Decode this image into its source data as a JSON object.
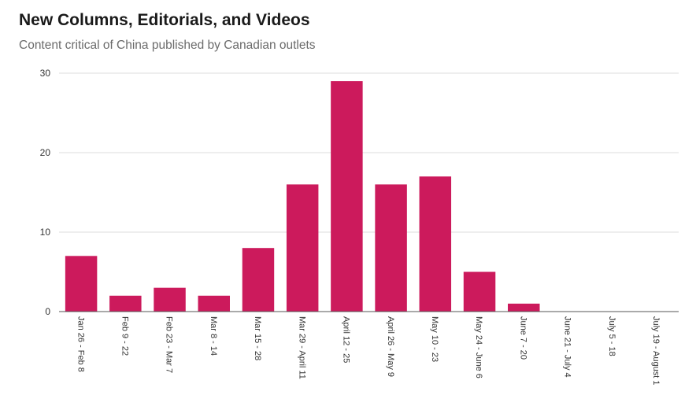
{
  "chart_data": {
    "type": "bar",
    "title": "New Columns, Editorials, and Videos",
    "subtitle": "Content critical of China published by Canadian outlets",
    "xlabel": "",
    "ylabel": "",
    "categories": [
      "Jan 26 - Feb 8",
      "Feb 9 - 22",
      "Feb 23 - Mar 7",
      "Mar 8 - 14",
      "Mar 15 - 28",
      "Mar 29 - April 11",
      "April 12 - 25",
      "April 26 - May 9",
      "May 10 - 23",
      "May 24 - June 6",
      "June 7 - 20",
      "June 21 - July 4",
      "July 5 - 18",
      "July 19 - August 1"
    ],
    "values": [
      7,
      2,
      3,
      2,
      8,
      16,
      29,
      16,
      17,
      5,
      1,
      0,
      0,
      0
    ],
    "ylim": [
      0,
      30
    ],
    "yticks": [
      "0",
      "10",
      "20",
      "30"
    ],
    "grid": true,
    "bar_color": "#cc1a5c"
  }
}
